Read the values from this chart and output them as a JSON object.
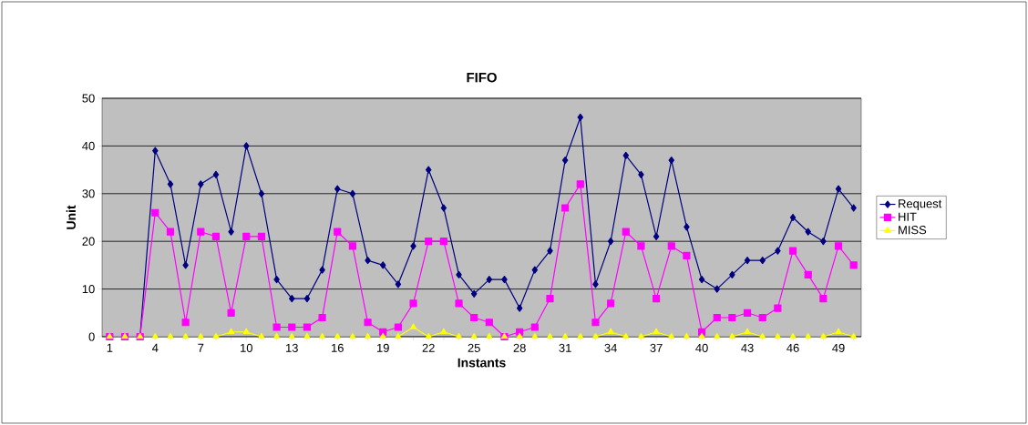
{
  "chart_data": {
    "type": "line",
    "title": "FIFO",
    "xlabel": "Instants",
    "ylabel": "Unit",
    "categories": [
      "1",
      null,
      null,
      "4",
      null,
      null,
      "7",
      null,
      null,
      "10",
      null,
      null,
      "13",
      null,
      null,
      "16",
      null,
      null,
      "19",
      null,
      null,
      "22",
      null,
      null,
      "25",
      null,
      null,
      "28",
      null,
      null,
      "31",
      null,
      null,
      "34",
      null,
      null,
      "37",
      null,
      null,
      "40",
      null,
      null,
      "43",
      null,
      null,
      "46",
      null,
      null,
      "49",
      null
    ],
    "series": [
      {
        "name": "Request",
        "color": "#000080",
        "marker": "diamond",
        "values": [
          0,
          0,
          0,
          39,
          32,
          15,
          32,
          34,
          22,
          40,
          30,
          12,
          8,
          8,
          14,
          31,
          30,
          16,
          15,
          11,
          19,
          35,
          27,
          13,
          9,
          12,
          12,
          6,
          14,
          18,
          37,
          46,
          11,
          20,
          38,
          34,
          21,
          37,
          23,
          12,
          10,
          13,
          16,
          16,
          18,
          25,
          22,
          20,
          31,
          27
        ]
      },
      {
        "name": "HIT",
        "color": "#ff00ff",
        "marker": "square",
        "values": [
          0,
          0,
          0,
          26,
          22,
          3,
          22,
          21,
          5,
          21,
          21,
          2,
          2,
          2,
          4,
          22,
          19,
          3,
          1,
          2,
          7,
          20,
          20,
          7,
          4,
          3,
          0,
          1,
          2,
          8,
          27,
          32,
          3,
          7,
          22,
          19,
          8,
          19,
          17,
          1,
          4,
          4,
          5,
          4,
          6,
          18,
          13,
          8,
          19,
          15
        ]
      },
      {
        "name": "MISS",
        "color": "#ffff00",
        "marker": "triangle",
        "values": [
          0,
          0,
          0,
          0,
          0,
          0,
          0,
          0,
          1,
          1,
          0,
          0,
          0,
          0,
          0,
          0,
          0,
          0,
          0,
          0,
          2,
          0,
          1,
          0,
          0,
          0,
          0,
          0,
          0,
          0,
          0,
          0,
          0,
          1,
          0,
          0,
          1,
          0,
          0,
          0,
          0,
          0,
          1,
          0,
          0,
          0,
          0,
          0,
          1,
          0
        ]
      }
    ],
    "ylim": [
      0,
      50
    ],
    "yticks": [
      0,
      10,
      20,
      30,
      40,
      50
    ],
    "grid": "y",
    "legend": "right",
    "line_style": "solid"
  }
}
